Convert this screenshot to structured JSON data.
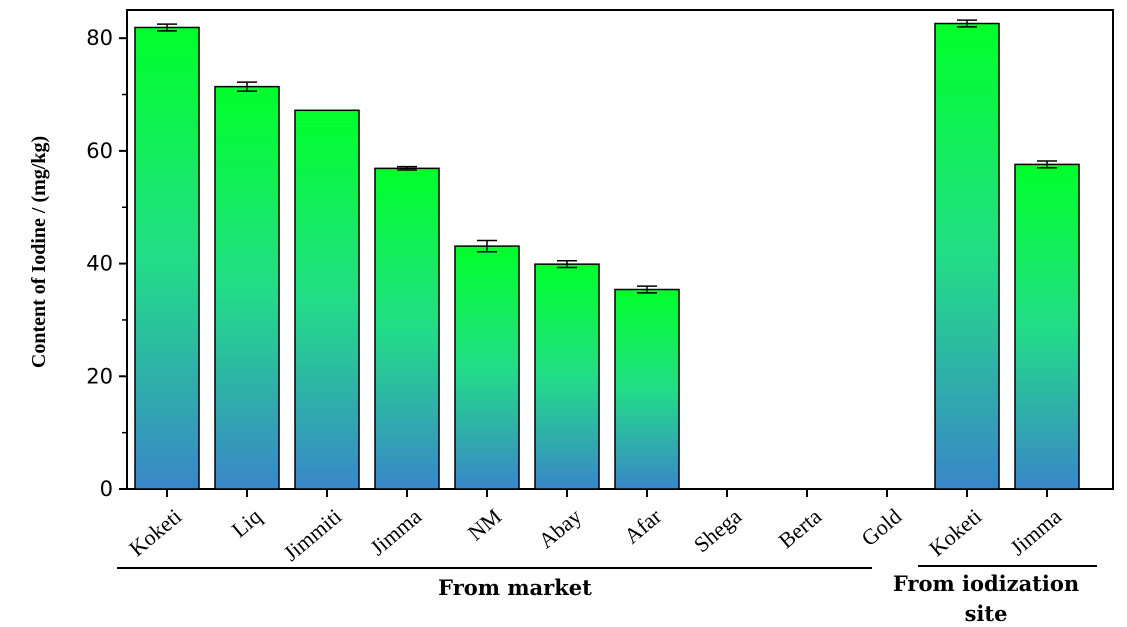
{
  "chart_data": {
    "type": "bar",
    "categories": [
      "Koketi",
      "Liq",
      "Jimmiti",
      "Jimma",
      "NM",
      "Abay",
      "Afar",
      "Shega",
      "Berta",
      "Gold",
      "Koketi",
      "Jimma"
    ],
    "values": [
      81.9,
      71.4,
      67.2,
      56.9,
      43.1,
      39.9,
      35.4,
      0,
      0,
      0,
      82.6,
      57.6
    ],
    "errors": [
      0.6,
      0.8,
      0.0,
      0.3,
      1.0,
      0.6,
      0.6,
      0,
      0,
      0,
      0.6,
      0.6
    ],
    "ylabel": "Content of Iodine / (mg/kg)",
    "ylim": [
      0,
      85
    ],
    "yticks": [
      "0",
      "20",
      "40",
      "60",
      "80"
    ],
    "groups": [
      {
        "label": "From market",
        "start": 0,
        "end": 9
      },
      {
        "label": "From iodization site",
        "start": 10,
        "end": 11
      }
    ],
    "grid": false,
    "colors": {
      "bar_top": "#00ff2a",
      "bar_mid": "#22dd88",
      "bar_bottom": "#3a86c8",
      "edge": "#000000"
    }
  }
}
